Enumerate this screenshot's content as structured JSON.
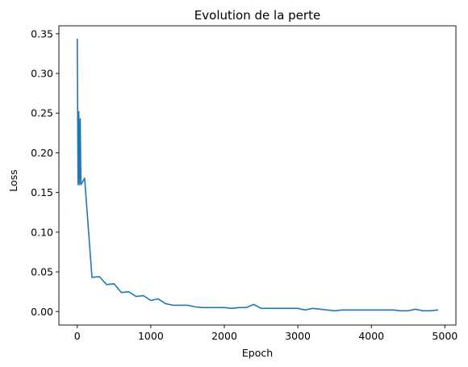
{
  "chart_data": {
    "type": "line",
    "title": "Evolution de la perte",
    "xlabel": "Epoch",
    "ylabel": "Loss",
    "xlim": [
      -250,
      5150
    ],
    "ylim": [
      -0.017,
      0.36
    ],
    "grid": false,
    "x_ticks": [
      0,
      1000,
      2000,
      3000,
      4000,
      5000
    ],
    "x_tick_labels": [
      "0",
      "1000",
      "2000",
      "3000",
      "4000",
      "5000"
    ],
    "y_ticks": [
      0.0,
      0.05,
      0.1,
      0.15,
      0.2,
      0.25,
      0.3,
      0.35
    ],
    "y_tick_labels": [
      "0.00",
      "0.05",
      "0.10",
      "0.15",
      "0.20",
      "0.25",
      "0.30",
      "0.35"
    ],
    "series": [
      {
        "color": "#1f77b4",
        "x": [
          0,
          10,
          20,
          30,
          40,
          50,
          100,
          200,
          300,
          400,
          500,
          600,
          700,
          800,
          900,
          1000,
          1100,
          1200,
          1300,
          1400,
          1500,
          1600,
          1700,
          1800,
          1900,
          2000,
          2100,
          2200,
          2300,
          2400,
          2500,
          2600,
          2700,
          2800,
          2900,
          3000,
          3100,
          3200,
          3300,
          3400,
          3500,
          3600,
          3700,
          3800,
          3900,
          4000,
          4100,
          4200,
          4300,
          4400,
          4500,
          4600,
          4700,
          4800,
          4900
        ],
        "values": [
          0.343,
          0.16,
          0.252,
          0.16,
          0.243,
          0.16,
          0.168,
          0.043,
          0.044,
          0.034,
          0.035,
          0.024,
          0.025,
          0.019,
          0.02,
          0.014,
          0.016,
          0.01,
          0.008,
          0.008,
          0.008,
          0.006,
          0.005,
          0.005,
          0.005,
          0.005,
          0.004,
          0.005,
          0.005,
          0.009,
          0.004,
          0.004,
          0.004,
          0.004,
          0.004,
          0.004,
          0.002,
          0.004,
          0.003,
          0.002,
          0.001,
          0.002,
          0.002,
          0.002,
          0.002,
          0.002,
          0.002,
          0.002,
          0.002,
          0.001,
          0.001,
          0.003,
          0.001,
          0.001,
          0.002
        ]
      }
    ]
  }
}
